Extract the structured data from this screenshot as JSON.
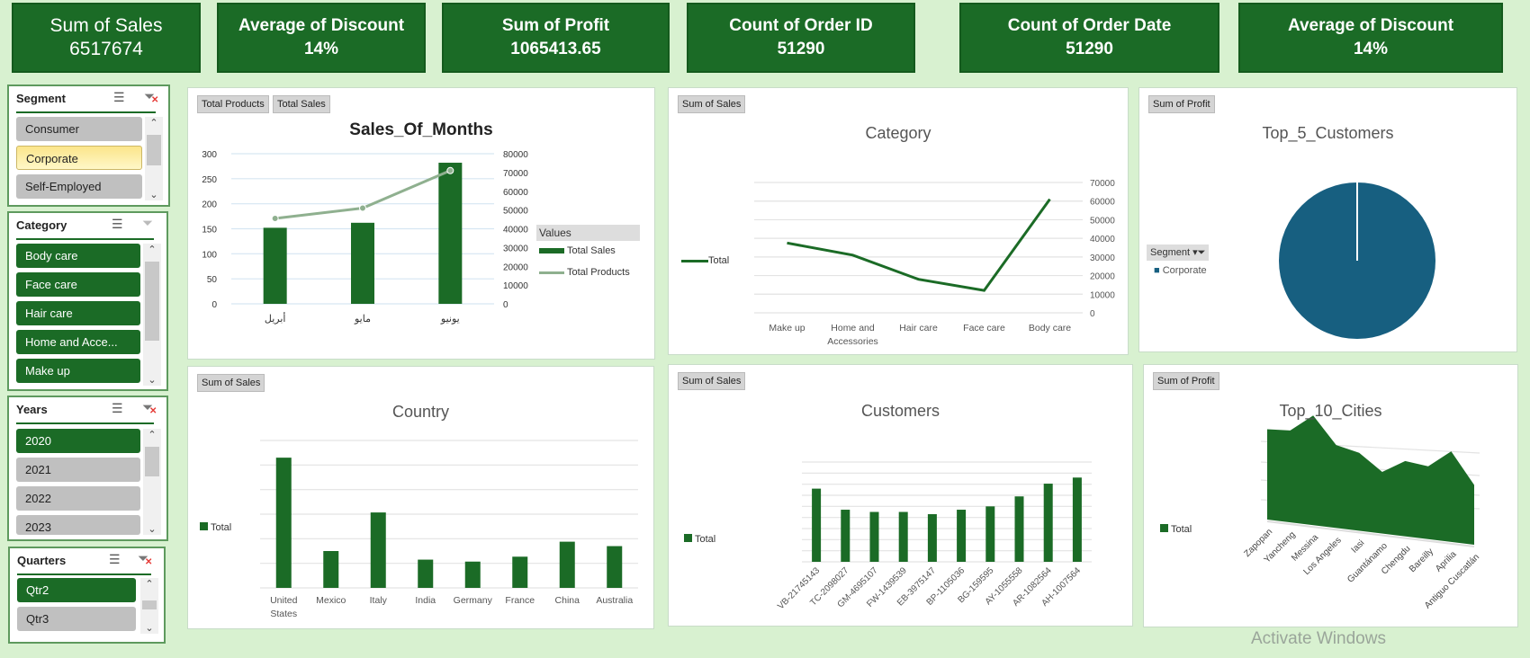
{
  "kpis": [
    {
      "label": "Sum of Sales",
      "value": "6517674"
    },
    {
      "label": "Average of Discount",
      "value": "14%"
    },
    {
      "label": "Sum of Profit",
      "value": "1065413.65"
    },
    {
      "label": "Count of Order ID",
      "value": "51290"
    },
    {
      "label": "Count of Order Date",
      "value": "51290"
    },
    {
      "label": "Average of Discount",
      "value": "14%"
    }
  ],
  "slicers": {
    "segment": {
      "title": "Segment",
      "items": [
        "Consumer",
        "Corporate",
        "Self-Employed"
      ]
    },
    "category": {
      "title": "Category",
      "items": [
        "Body care",
        "Face care",
        "Hair care",
        "Home and Acce...",
        "Make up"
      ]
    },
    "years": {
      "title": "Years",
      "items": [
        "2020",
        "2021",
        "2022",
        "2023"
      ]
    },
    "quarters": {
      "title": "Quarters",
      "items": [
        "Qtr2",
        "Qtr3"
      ]
    }
  },
  "colors": {
    "accent": "#1b6b26",
    "line": "#8fb08f",
    "pie": "#175f80",
    "background": "#d8f1d0"
  },
  "watermark": "Activate Windows",
  "chart_data": [
    {
      "type": "bar+line",
      "title": "Sales_Of_Months",
      "field_buttons": [
        "Total Products",
        "Total Sales"
      ],
      "categories": [
        "أبريل",
        "مايو",
        "يونيو"
      ],
      "series": [
        {
          "name": "Total Sales",
          "type": "bar",
          "axis": "left",
          "values": [
            152,
            162,
            282
          ]
        },
        {
          "name": "Total Products",
          "type": "line",
          "axis": "right",
          "values": [
            45500,
            51000,
            71000
          ]
        }
      ],
      "y_ticks": [
        "0",
        "50",
        "100",
        "150",
        "200",
        "250",
        "300"
      ],
      "ylim": [
        0,
        300
      ],
      "y2_ticks": [
        "0",
        "10000",
        "20000",
        "30000",
        "40000",
        "50000",
        "60000",
        "70000",
        "80000"
      ],
      "y2lim": [
        0,
        80000
      ],
      "legend_title": "Values",
      "legend": "right",
      "grid": true
    },
    {
      "type": "line",
      "title": "Category",
      "field_button": "Sum of Sales",
      "legend_entry": "Total",
      "categories": [
        "Make up",
        "Home and Accessories",
        "Hair care",
        "Face care",
        "Body care"
      ],
      "values": [
        37500,
        31000,
        18000,
        12000,
        61000
      ],
      "y_ticks": [
        "0",
        "10000",
        "20000",
        "30000",
        "40000",
        "50000",
        "60000",
        "70000"
      ],
      "ylim": [
        0,
        70000
      ],
      "legend": "left",
      "grid": true
    },
    {
      "type": "pie",
      "title": "Top_5_Customers",
      "field_button": "Sum of Profit",
      "legend_field": "Segment",
      "categories": [
        "Corporate"
      ],
      "values": [
        100
      ],
      "legend": "left"
    },
    {
      "type": "bar",
      "title": "Country",
      "field_button": "Sum of Sales",
      "legend_entry": "Total",
      "categories": [
        "United States",
        "Mexico",
        "Italy",
        "India",
        "Germany",
        "France",
        "China",
        "Australia"
      ],
      "values": [
        5.3,
        1.5,
        3.07,
        1.15,
        1.07,
        1.27,
        1.88,
        1.7
      ],
      "ylim": [
        0,
        6
      ],
      "y_axis_labels": "none",
      "legend": "left",
      "grid": true
    },
    {
      "type": "bar",
      "title": "Customers",
      "field_button": "Sum of Sales",
      "legend_entry": "Total",
      "categories": [
        "VB-21745143",
        "TC-2098027",
        "GM-4695107",
        "FW-1439539",
        "EB-3975147",
        "BP-1105036",
        "BG-159595",
        "AY-1055558",
        "AR-1082564",
        "AH-1007564"
      ],
      "values": [
        6.6,
        4.7,
        4.5,
        4.5,
        4.3,
        4.7,
        5.0,
        5.9,
        7.05,
        7.6
      ],
      "ylim": [
        0,
        9
      ],
      "y_axis_labels": "none",
      "legend": "left",
      "grid": true
    },
    {
      "type": "area",
      "title": "Top_10_Cities",
      "field_button": "Sum of Profit",
      "legend_entry": "Total",
      "categories": [
        "Zapopan",
        "Yancheng",
        "Messina",
        "Los Angeles",
        "Iasi",
        "Guantánamo",
        "Chengdu",
        "Bareilly",
        "Aprilia",
        "Antiguo Cuscatlán"
      ],
      "values": [
        0.45,
        0.5,
        0.75,
        0.45,
        0.42,
        0.25,
        0.45,
        0.45,
        0.7,
        0.35
      ],
      "ylim": [
        0,
        1
      ],
      "y_axis_labels": "none",
      "legend": "left",
      "grid": true,
      "style": "3d"
    }
  ]
}
